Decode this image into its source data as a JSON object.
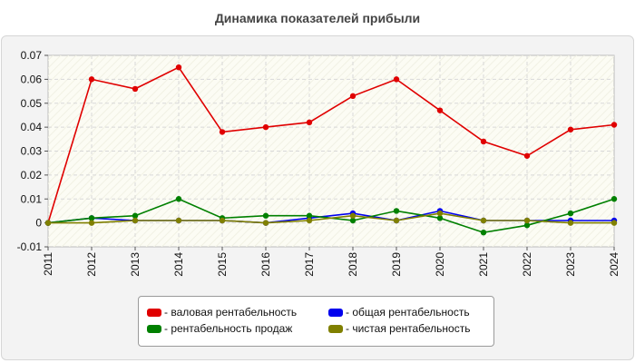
{
  "chart_data": {
    "type": "line",
    "title": "Динамика показателей прибыли",
    "x": [
      "2011",
      "2012",
      "2013",
      "2014",
      "2015",
      "2016",
      "2017",
      "2018",
      "2019",
      "2020",
      "2021",
      "2022",
      "2023",
      "2024"
    ],
    "ylim": [
      -0.01,
      0.07
    ],
    "y_ticks": [
      "-0.01",
      "0",
      "0.01",
      "0.02",
      "0.03",
      "0.04",
      "0.05",
      "0.06",
      "0.07"
    ],
    "grid": true,
    "legend_position": "bottom",
    "series": [
      {
        "name": "- валовая рентабельность",
        "color": "#e00000",
        "values": [
          0,
          0.06,
          0.056,
          0.065,
          0.038,
          0.04,
          0.042,
          0.053,
          0.06,
          0.047,
          0.034,
          0.028,
          0.039,
          0.041
        ]
      },
      {
        "name": "- общая рентабельность",
        "color": "#0000ee",
        "values": [
          0,
          0.002,
          0.001,
          0.001,
          0.001,
          0,
          0.002,
          0.004,
          0.001,
          0.005,
          0.001,
          0.001,
          0.001,
          0.001
        ]
      },
      {
        "name": "- рентабельность продаж",
        "color": "#008000",
        "values": [
          0,
          0.002,
          0.003,
          0.01,
          0.002,
          0.003,
          0.003,
          0.001,
          0.005,
          0.002,
          -0.004,
          -0.001,
          0.004,
          0.01
        ]
      },
      {
        "name": "- чистая рентабельность",
        "color": "#808000",
        "values": [
          0,
          0,
          0.001,
          0.001,
          0.001,
          0,
          0.001,
          0.003,
          0.001,
          0.004,
          0.001,
          0.001,
          0,
          0
        ]
      }
    ]
  }
}
